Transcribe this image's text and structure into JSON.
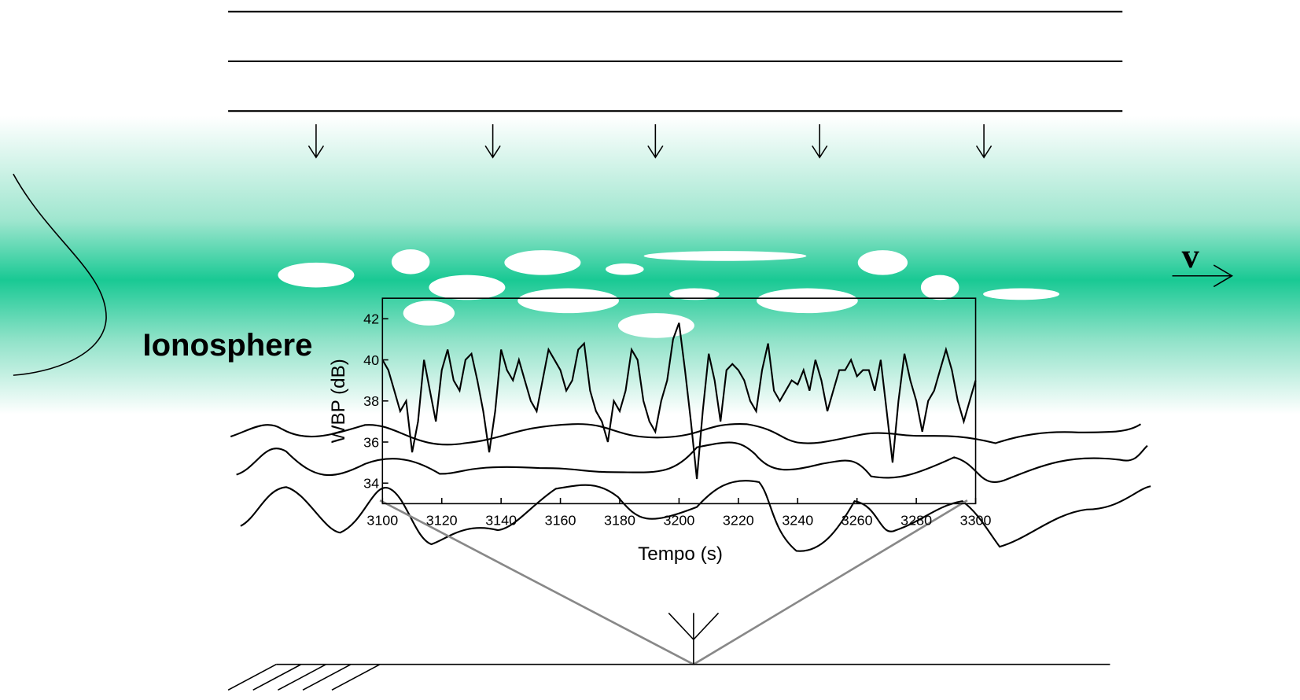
{
  "diagram": {
    "ionosphere_label": "Ionosphere",
    "velocity_label": "v"
  },
  "chart_data": {
    "type": "line",
    "xlabel": "Tempo (s)",
    "ylabel": "WBP (dB)",
    "x": [
      3100,
      3102,
      3104,
      3106,
      3108,
      3110,
      3112,
      3114,
      3116,
      3118,
      3120,
      3122,
      3124,
      3126,
      3128,
      3130,
      3132,
      3134,
      3136,
      3138,
      3140,
      3142,
      3144,
      3146,
      3148,
      3150,
      3152,
      3154,
      3156,
      3158,
      3160,
      3162,
      3164,
      3166,
      3168,
      3170,
      3172,
      3174,
      3176,
      3178,
      3180,
      3182,
      3184,
      3186,
      3188,
      3190,
      3192,
      3194,
      3196,
      3198,
      3200,
      3202,
      3204,
      3206,
      3208,
      3210,
      3212,
      3214,
      3216,
      3218,
      3220,
      3222,
      3224,
      3226,
      3228,
      3230,
      3232,
      3234,
      3236,
      3238,
      3240,
      3242,
      3244,
      3246,
      3248,
      3250,
      3252,
      3254,
      3256,
      3258,
      3260,
      3262,
      3264,
      3266,
      3268,
      3270,
      3272,
      3274,
      3276,
      3278,
      3280,
      3282,
      3284,
      3286,
      3288,
      3290,
      3292,
      3294,
      3296,
      3298,
      3300
    ],
    "values": [
      40,
      39.5,
      38.5,
      37.5,
      38,
      35.5,
      37,
      40,
      38.5,
      37,
      39.5,
      40.5,
      39,
      38.5,
      40,
      40.3,
      39,
      37.5,
      35.5,
      37.5,
      40.5,
      39.5,
      39,
      40,
      39,
      38,
      37.5,
      39,
      40.5,
      40,
      39.5,
      38.5,
      39,
      40.5,
      40.8,
      38.5,
      37.5,
      37,
      36,
      38,
      37.5,
      38.5,
      40.5,
      40,
      38,
      37,
      36.5,
      38,
      39,
      41,
      41.8,
      39.5,
      37,
      34.2,
      37.5,
      40.3,
      39,
      37,
      39.5,
      39.8,
      39.5,
      39,
      38,
      37.5,
      39.5,
      40.8,
      38.5,
      38,
      38.5,
      39,
      38.8,
      39.5,
      38.5,
      40,
      39,
      37.5,
      38.5,
      39.5,
      39.5,
      40,
      39.2,
      39.5,
      39.5,
      38.5,
      40,
      37.5,
      35,
      38,
      40.3,
      39,
      38,
      36.5,
      38,
      38.5,
      39.5,
      40.5,
      39.5,
      38,
      37,
      38,
      39
    ],
    "color": "#000000",
    "xlim": [
      3100,
      3300
    ],
    "xticks": [
      3100,
      3120,
      3140,
      3160,
      3180,
      3200,
      3220,
      3240,
      3260,
      3280,
      3300
    ],
    "ylim": [
      33,
      43
    ],
    "yticks": [
      34,
      36,
      38,
      40,
      42
    ]
  }
}
